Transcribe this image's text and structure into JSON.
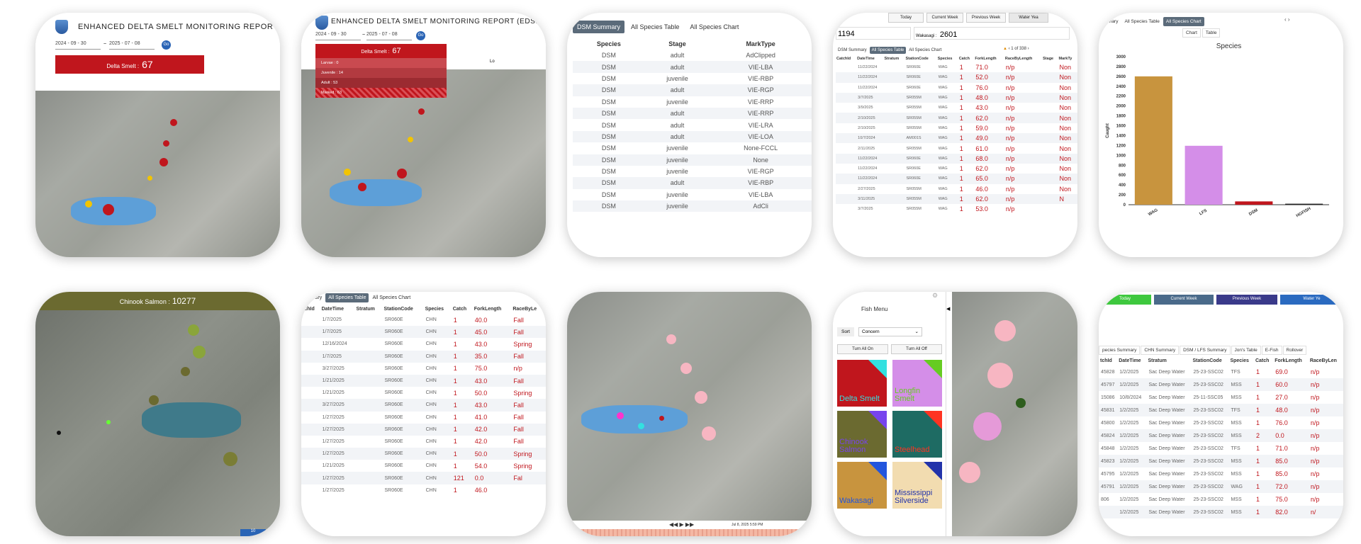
{
  "t1": {
    "title": "ENHANCED DELTA SMELT MONITORING REPOR",
    "date_from": "2024 - 09 - 30",
    "date_to": "2025 - 07 - 08",
    "go": "Go",
    "species": "Delta Smelt :",
    "count": "67"
  },
  "t2": {
    "title": "ENHANCED DELTA SMELT MONITORING REPORT (EDSM",
    "date_from": "2024 - 09 - 30",
    "date_to": "2025 - 07 - 08",
    "go": "Go",
    "species": "Delta Smelt :",
    "count": "67",
    "rows": [
      "Larvae : 0",
      "Juvenile : 14",
      "Adult : 53",
      "Marked : 63"
    ],
    "side": "Lo"
  },
  "t3": {
    "tabs": [
      "DSM Summary",
      "All Species Table",
      "All Species Chart"
    ],
    "columns": [
      "Species",
      "Stage",
      "MarkType"
    ],
    "rows": [
      [
        "DSM",
        "adult",
        "AdClipped"
      ],
      [
        "DSM",
        "adult",
        "VIE-LBA"
      ],
      [
        "DSM",
        "juvenile",
        "VIE-RBP"
      ],
      [
        "DSM",
        "adult",
        "VIE-RGP"
      ],
      [
        "DSM",
        "juvenile",
        "VIE-RRP"
      ],
      [
        "DSM",
        "adult",
        "VIE-RRP"
      ],
      [
        "DSM",
        "adult",
        "VIE-LRA"
      ],
      [
        "DSM",
        "adult",
        "VIE-LOA"
      ],
      [
        "DSM",
        "juvenile",
        "None-FCCL"
      ],
      [
        "DSM",
        "juvenile",
        "None"
      ],
      [
        "DSM",
        "juvenile",
        "VIE-RGP"
      ],
      [
        "DSM",
        "adult",
        "VIE-RBP"
      ],
      [
        "DSM",
        "juvenile",
        "VIE-LBA"
      ],
      [
        "DSM",
        "juvenile",
        "AdCli"
      ]
    ]
  },
  "t4": {
    "buttons": [
      "Today",
      "Current Week",
      "Previous Week",
      "Water Yea"
    ],
    "num1": "1194",
    "wak_label": "Wakasagi :",
    "wak_value": "2601",
    "tabs": [
      "DSM Summary",
      "All Species Table",
      "All Species Chart"
    ],
    "pager": "1 of 338",
    "columns": [
      "CatchId",
      "DateTime",
      "Stratum",
      "StationCode",
      "Species",
      "Catch",
      "ForkLength",
      "RaceByLength",
      "Stage",
      "MarkTy"
    ],
    "rows": [
      [
        "",
        "11/22/2024",
        "",
        "SR060E",
        "WAG",
        "1",
        "71.0",
        "n/p",
        "",
        "Non"
      ],
      [
        "",
        "11/22/2024",
        "",
        "SR060E",
        "WAG",
        "1",
        "52.0",
        "n/p",
        "",
        "Non"
      ],
      [
        "",
        "11/22/2024",
        "",
        "SR060E",
        "WAG",
        "1",
        "76.0",
        "n/p",
        "",
        "Non"
      ],
      [
        "",
        "3/7/2025",
        "",
        "SR055M",
        "WAG",
        "1",
        "48.0",
        "n/p",
        "",
        "Non"
      ],
      [
        "",
        "3/9/2025",
        "",
        "SR055M",
        "WAG",
        "1",
        "43.0",
        "n/p",
        "",
        "Non"
      ],
      [
        "",
        "2/10/2025",
        "",
        "SR055M",
        "WAG",
        "1",
        "62.0",
        "n/p",
        "",
        "Non"
      ],
      [
        "",
        "2/10/2025",
        "",
        "SR055M",
        "WAG",
        "1",
        "59.0",
        "n/p",
        "",
        "Non"
      ],
      [
        "",
        "10/7/2024",
        "",
        "AM001S",
        "WAG",
        "1",
        "49.0",
        "n/p",
        "",
        "Non"
      ],
      [
        "",
        "2/11/2025",
        "",
        "SR055M",
        "WAG",
        "1",
        "61.0",
        "n/p",
        "",
        "Non"
      ],
      [
        "",
        "11/22/2024",
        "",
        "SR060E",
        "WAG",
        "1",
        "68.0",
        "n/p",
        "",
        "Non"
      ],
      [
        "",
        "11/22/2024",
        "",
        "SR060E",
        "WAG",
        "1",
        "62.0",
        "n/p",
        "",
        "Non"
      ],
      [
        "",
        "11/22/2024",
        "",
        "SR060E",
        "WAG",
        "1",
        "65.0",
        "n/p",
        "",
        "Non"
      ],
      [
        "",
        "2/27/2025",
        "",
        "SR055M",
        "WAG",
        "1",
        "46.0",
        "n/p",
        "",
        "Non"
      ],
      [
        "",
        "3/11/2025",
        "",
        "SR055M",
        "WAG",
        "1",
        "62.0",
        "n/p",
        "",
        "N"
      ],
      [
        "",
        "3/7/2025",
        "",
        "SR055M",
        "WAG",
        "1",
        "53.0",
        "n/p",
        "",
        ""
      ]
    ]
  },
  "t5": {
    "tabs": [
      "ummary",
      "All Species Table",
      "All Species Chart"
    ],
    "sub": [
      "Chart",
      "Table"
    ],
    "chart_data": {
      "type": "bar",
      "title": "Species",
      "ylabel": "Caught",
      "categories": [
        "WAG",
        "LFS",
        "DSM",
        "HGFISH"
      ],
      "values": [
        2601,
        1194,
        67,
        20
      ],
      "ylim": [
        0,
        3000
      ],
      "ticks": [
        "3000",
        "2800",
        "2600",
        "2400",
        "2200",
        "2000",
        "1800",
        "1600",
        "1400",
        "1200",
        "1000",
        "800",
        "600",
        "400",
        "200",
        "0"
      ],
      "colors": [
        "#c8943e",
        "#d48ee8",
        "#c0161d",
        "#222222"
      ]
    }
  },
  "t6": {
    "species": "Chinook Salmon :",
    "count": "10277",
    "corner": "10"
  },
  "t7": {
    "tabs": [
      "ummary",
      "All Species Table",
      "All Species Chart"
    ],
    "columns": [
      "tchId",
      "DateTime",
      "Stratum",
      "StationCode",
      "Species",
      "Catch",
      "ForkLength",
      "RaceByLe"
    ],
    "rows": [
      [
        "",
        "1/7/2025",
        "",
        "SR060E",
        "CHN",
        "1",
        "40.0",
        "Fall"
      ],
      [
        "",
        "1/7/2025",
        "",
        "SR060E",
        "CHN",
        "1",
        "45.0",
        "Fall"
      ],
      [
        "",
        "12/16/2024",
        "",
        "SR060E",
        "CHN",
        "1",
        "43.0",
        "Spring"
      ],
      [
        "",
        "1/7/2025",
        "",
        "SR060E",
        "CHN",
        "1",
        "35.0",
        "Fall"
      ],
      [
        "",
        "3/27/2025",
        "",
        "SR060E",
        "CHN",
        "1",
        "75.0",
        "n/p"
      ],
      [
        "",
        "1/21/2025",
        "",
        "SR060E",
        "CHN",
        "1",
        "43.0",
        "Fall"
      ],
      [
        "",
        "1/21/2025",
        "",
        "SR060E",
        "CHN",
        "1",
        "50.0",
        "Spring"
      ],
      [
        "",
        "3/27/2025",
        "",
        "SR060E",
        "CHN",
        "1",
        "43.0",
        "Fall"
      ],
      [
        "",
        "1/27/2025",
        "",
        "SR060E",
        "CHN",
        "1",
        "41.0",
        "Fall"
      ],
      [
        "",
        "1/27/2025",
        "",
        "SR060E",
        "CHN",
        "1",
        "42.0",
        "Fall"
      ],
      [
        "",
        "1/27/2025",
        "",
        "SR060E",
        "CHN",
        "1",
        "42.0",
        "Fall"
      ],
      [
        "",
        "1/27/2025",
        "",
        "SR060E",
        "CHN",
        "1",
        "50.0",
        "Spring"
      ],
      [
        "",
        "1/21/2025",
        "",
        "SR060E",
        "CHN",
        "1",
        "54.0",
        "Spring"
      ],
      [
        "",
        "1/27/2025",
        "",
        "SR060E",
        "CHN",
        "121",
        "0.0",
        "Fal"
      ],
      [
        "",
        "1/27/2025",
        "",
        "SR060E",
        "CHN",
        "1",
        "46.0",
        ""
      ]
    ]
  },
  "t8": {
    "timestamp": "Jul 8, 2025 5:59 PM"
  },
  "t9": {
    "menu_title": "enu",
    "fish_menu": "Fish Menu",
    "sort": "Sort",
    "sort_value": "Concern",
    "on": "Turn All On",
    "off": "Turn All Off",
    "cards": [
      {
        "label": "Delta Smelt",
        "bg": "#c0161d",
        "corner": "#33e0e0",
        "text": "#33e0e0"
      },
      {
        "label": "Longfin Smelt",
        "bg": "#d48ee8",
        "corner": "#66cc22",
        "text": "#66cc22"
      },
      {
        "label": "Chinook Salmon",
        "bg": "#6b6a30",
        "corner": "#7744ee",
        "text": "#7744ee"
      },
      {
        "label": "Steelhead",
        "bg": "#1e6b63",
        "corner": "#ff3322",
        "text": "#ff3322"
      },
      {
        "label": "Wakasagi",
        "bg": "#c8943e",
        "corner": "#2255dd",
        "text": "#2255dd"
      },
      {
        "label": "Mississippi Silverside",
        "bg": "#f2dcb0",
        "corner": "#2233aa",
        "text": "#2233aa"
      }
    ]
  },
  "t10": {
    "buttons": [
      "Today",
      "Current Week",
      "Previous Week",
      "Water Ye"
    ],
    "tabs": [
      "pecies Summary",
      "CHN Summary",
      "DSM / LFS Summary",
      "Jon's Table",
      "E-Fish",
      "Rollover"
    ],
    "columns": [
      "tchId",
      "DateTime",
      "Stratum",
      "StationCode",
      "Species",
      "Catch",
      "ForkLength",
      "RaceByLen"
    ],
    "rows": [
      [
        "45828",
        "1/2/2025",
        "Sac Deep Water",
        "25-23-SSC02",
        "TFS",
        "1",
        "69.0",
        "n/p"
      ],
      [
        "45797",
        "1/2/2025",
        "Sac Deep Water",
        "25-23-SSC02",
        "MSS",
        "1",
        "60.0",
        "n/p"
      ],
      [
        "15086",
        "10/8/2024",
        "Sac Deep Water",
        "25-11-SSC05",
        "MSS",
        "1",
        "27.0",
        "n/p"
      ],
      [
        "45831",
        "1/2/2025",
        "Sac Deep Water",
        "25-23-SSC02",
        "TFS",
        "1",
        "48.0",
        "n/p"
      ],
      [
        "45800",
        "1/2/2025",
        "Sac Deep Water",
        "25-23-SSC02",
        "MSS",
        "1",
        "76.0",
        "n/p"
      ],
      [
        "45824",
        "1/2/2025",
        "Sac Deep Water",
        "25-23-SSC02",
        "MSS",
        "2",
        "0.0",
        "n/p"
      ],
      [
        "45848",
        "1/2/2025",
        "Sac Deep Water",
        "25-23-SSC02",
        "TFS",
        "1",
        "71.0",
        "n/p"
      ],
      [
        "45823",
        "1/2/2025",
        "Sac Deep Water",
        "25-23-SSC02",
        "MSS",
        "1",
        "85.0",
        "n/p"
      ],
      [
        "45795",
        "1/2/2025",
        "Sac Deep Water",
        "25-23-SSC02",
        "MSS",
        "1",
        "85.0",
        "n/p"
      ],
      [
        "45791",
        "1/2/2025",
        "Sac Deep Water",
        "25-23-SSC02",
        "WAG",
        "1",
        "72.0",
        "n/p"
      ],
      [
        "806",
        "1/2/2025",
        "Sac Deep Water",
        "25-23-SSC02",
        "MSS",
        "1",
        "75.0",
        "n/p"
      ],
      [
        "",
        "1/2/2025",
        "Sac Deep Water",
        "25-23-SSC02",
        "MSS",
        "1",
        "82.0",
        "n/"
      ]
    ]
  }
}
